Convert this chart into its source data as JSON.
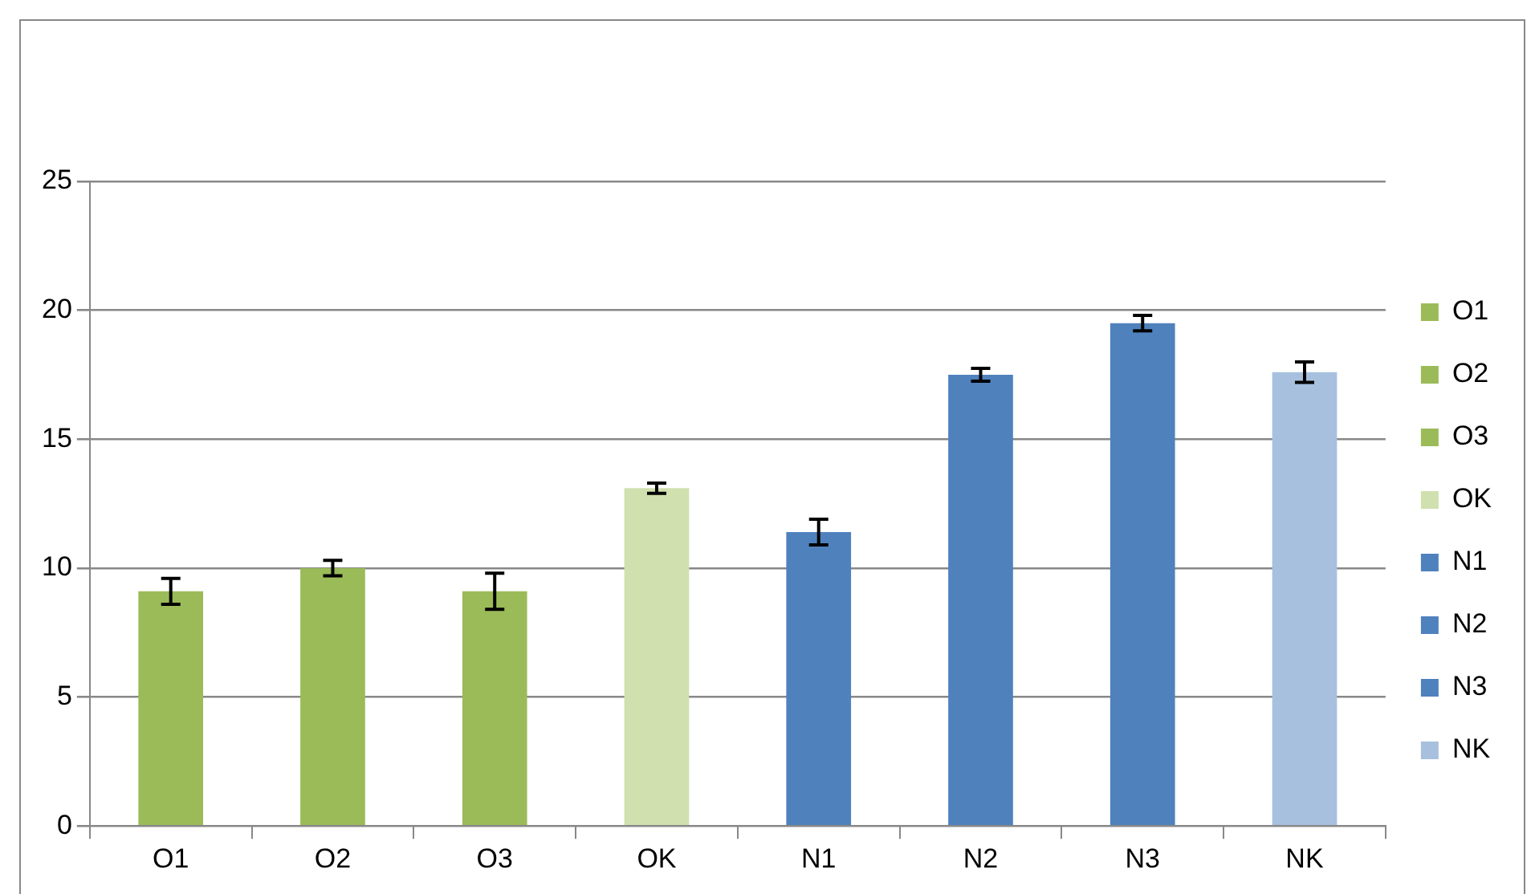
{
  "chart_data": {
    "type": "bar",
    "categories": [
      "O1",
      "O2",
      "O3",
      "OK",
      "N1",
      "N2",
      "N3",
      "NK"
    ],
    "series": [
      {
        "name": "O1",
        "color": "#9bbb59",
        "values": [
          9.1,
          null,
          null,
          null,
          null,
          null,
          null,
          null
        ],
        "errors": [
          0.5,
          null,
          null,
          null,
          null,
          null,
          null,
          null
        ]
      },
      {
        "name": "O2",
        "color": "#9bbb59",
        "values": [
          null,
          10.0,
          null,
          null,
          null,
          null,
          null,
          null
        ],
        "errors": [
          null,
          0.3,
          null,
          null,
          null,
          null,
          null,
          null
        ]
      },
      {
        "name": "O3",
        "color": "#9bbb59",
        "values": [
          null,
          null,
          9.1,
          null,
          null,
          null,
          null,
          null
        ],
        "errors": [
          null,
          null,
          0.7,
          null,
          null,
          null,
          null,
          null
        ]
      },
      {
        "name": "OK",
        "color": "#d0e0ae",
        "values": [
          null,
          null,
          null,
          13.1,
          null,
          null,
          null,
          null
        ],
        "errors": [
          null,
          null,
          null,
          0.2,
          null,
          null,
          null,
          null
        ]
      },
      {
        "name": "N1",
        "color": "#4f81bd",
        "values": [
          null,
          null,
          null,
          null,
          11.4,
          null,
          null,
          null
        ],
        "errors": [
          null,
          null,
          null,
          null,
          0.5,
          null,
          null,
          null
        ]
      },
      {
        "name": "N2",
        "color": "#4f81bd",
        "values": [
          null,
          null,
          null,
          null,
          null,
          17.5,
          null,
          null
        ],
        "errors": [
          null,
          null,
          null,
          null,
          null,
          0.25,
          null,
          null
        ]
      },
      {
        "name": "N3",
        "color": "#4f81bd",
        "values": [
          null,
          null,
          null,
          null,
          null,
          null,
          19.5,
          null
        ],
        "errors": [
          null,
          null,
          null,
          null,
          null,
          null,
          0.3,
          null
        ]
      },
      {
        "name": "NK",
        "color": "#a7c0de",
        "values": [
          null,
          null,
          null,
          null,
          null,
          null,
          null,
          17.6
        ],
        "errors": [
          null,
          null,
          null,
          null,
          null,
          null,
          null,
          0.4
        ]
      }
    ],
    "ylim": [
      0,
      25
    ],
    "yticks": [
      0,
      5,
      10,
      15,
      20,
      25
    ],
    "grid": "y",
    "legend": "right"
  }
}
